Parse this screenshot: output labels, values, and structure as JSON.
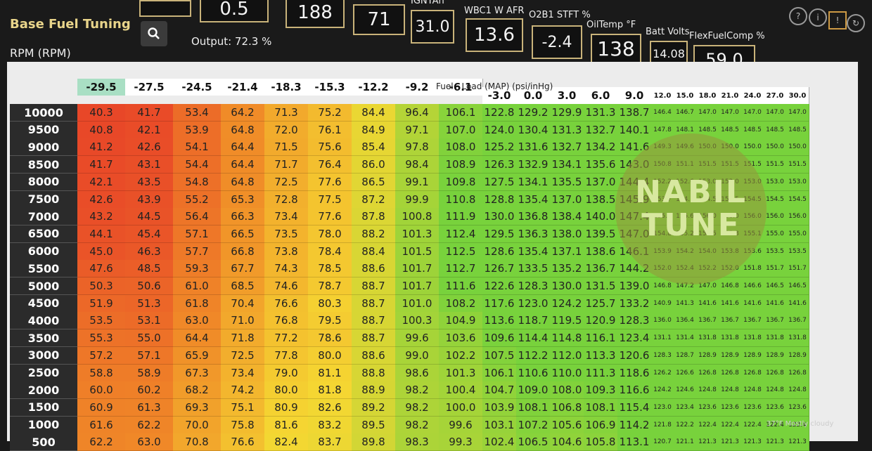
{
  "gauges": [
    {
      "label": "",
      "value": "0.5"
    },
    {
      "label": "",
      "value": "188"
    },
    {
      "label": "",
      "value": "71"
    },
    {
      "label": "IGNTAn °",
      "value": "31.0"
    },
    {
      "label": "WBC1 W AFR",
      "value": "13.6"
    },
    {
      "label": "O2B1 STFT %",
      "value": "-2.4"
    },
    {
      "label": "OilTemp °F",
      "value": "138"
    },
    {
      "label": "Batt Volts",
      "value": "14.08"
    },
    {
      "label": "FlexFuelComp %",
      "value": "59.0"
    }
  ],
  "header": {
    "title": "Base Fuel Tuning",
    "output_label": "Output: 72.3 %",
    "row_axis_label": "RPM (RPM)",
    "col_axis_label": "Fuel - Load (MAP) (psi/inHg)"
  },
  "table": {
    "columns": [
      "-29.5",
      "-27.5",
      "-24.5",
      "-21.4",
      "-18.3",
      "-15.3",
      "-12.2",
      "-9.2",
      "-6.1",
      "-3.0",
      "0.0",
      "3.0",
      "6.0",
      "9.0",
      "12.0",
      "15.0",
      "18.0",
      "21.0",
      "24.0",
      "27.0",
      "30.0"
    ],
    "rows": [
      {
        "rpm": "10000",
        "cells": [
          "40.3",
          "41.7",
          "53.4",
          "64.2",
          "71.3",
          "75.2",
          "84.4",
          "96.4",
          "106.1",
          "122.8",
          "129.2",
          "129.9",
          "131.3",
          "138.7",
          "146.4",
          "146.7",
          "147.0",
          "147.0",
          "147.0",
          "147.0",
          "147.0"
        ]
      },
      {
        "rpm": "9500",
        "cells": [
          "40.8",
          "42.1",
          "53.9",
          "64.8",
          "72.0",
          "76.1",
          "84.9",
          "97.1",
          "107.0",
          "124.0",
          "130.4",
          "131.3",
          "132.7",
          "140.1",
          "147.8",
          "148.1",
          "148.5",
          "148.5",
          "148.5",
          "148.5",
          "148.5"
        ]
      },
      {
        "rpm": "9000",
        "cells": [
          "41.2",
          "42.6",
          "54.1",
          "64.4",
          "71.5",
          "75.6",
          "85.4",
          "97.8",
          "108.0",
          "125.2",
          "131.6",
          "132.7",
          "134.2",
          "141.6",
          "149.3",
          "149.6",
          "150.0",
          "150.0",
          "150.0",
          "150.0",
          "150.0"
        ]
      },
      {
        "rpm": "8500",
        "cells": [
          "41.7",
          "43.1",
          "54.4",
          "64.4",
          "71.7",
          "76.4",
          "86.0",
          "98.4",
          "108.9",
          "126.3",
          "132.9",
          "134.1",
          "135.6",
          "143.0",
          "150.8",
          "151.1",
          "151.5",
          "151.5",
          "151.5",
          "151.5",
          "151.5"
        ]
      },
      {
        "rpm": "8000",
        "cells": [
          "42.1",
          "43.5",
          "54.8",
          "64.8",
          "72.5",
          "77.6",
          "86.5",
          "99.1",
          "109.8",
          "127.5",
          "134.1",
          "135.5",
          "137.0",
          "144.4",
          "152.2",
          "152.6",
          "153.0",
          "153.0",
          "153.0",
          "153.0",
          "153.0"
        ]
      },
      {
        "rpm": "7500",
        "cells": [
          "42.6",
          "43.9",
          "55.2",
          "65.3",
          "72.8",
          "77.5",
          "87.2",
          "99.9",
          "110.8",
          "128.8",
          "135.4",
          "137.0",
          "138.5",
          "145.9",
          "153.7",
          "154.1",
          "154.5",
          "154.5",
          "154.5",
          "154.5",
          "154.5"
        ]
      },
      {
        "rpm": "7000",
        "cells": [
          "43.2",
          "44.5",
          "56.4",
          "66.3",
          "73.4",
          "77.6",
          "87.8",
          "100.8",
          "111.9",
          "130.0",
          "136.8",
          "138.4",
          "140.0",
          "147.4",
          "155.3",
          "155.6",
          "156.0",
          "156.0",
          "156.0",
          "156.0",
          "156.0"
        ]
      },
      {
        "rpm": "6500",
        "cells": [
          "44.1",
          "45.4",
          "57.1",
          "66.5",
          "73.5",
          "78.0",
          "88.2",
          "101.3",
          "112.4",
          "129.5",
          "136.3",
          "138.0",
          "139.5",
          "147.0",
          "154.8",
          "155.2",
          "155.5",
          "155.3",
          "155.1",
          "155.0",
          "155.0"
        ]
      },
      {
        "rpm": "6000",
        "cells": [
          "45.0",
          "46.3",
          "57.7",
          "66.8",
          "73.8",
          "78.4",
          "88.4",
          "101.5",
          "112.5",
          "128.6",
          "135.4",
          "137.1",
          "138.6",
          "146.1",
          "153.9",
          "154.2",
          "154.0",
          "153.8",
          "153.6",
          "153.5",
          "153.5"
        ]
      },
      {
        "rpm": "5500",
        "cells": [
          "47.6",
          "48.5",
          "59.3",
          "67.7",
          "74.3",
          "78.5",
          "88.6",
          "101.7",
          "112.7",
          "126.7",
          "133.5",
          "135.2",
          "136.7",
          "144.2",
          "152.0",
          "152.4",
          "152.2",
          "152.0",
          "151.8",
          "151.7",
          "151.7"
        ]
      },
      {
        "rpm": "5000",
        "cells": [
          "50.3",
          "50.6",
          "61.0",
          "68.5",
          "74.6",
          "78.7",
          "88.7",
          "101.7",
          "111.6",
          "122.6",
          "128.3",
          "130.0",
          "131.5",
          "139.0",
          "146.8",
          "147.2",
          "147.0",
          "146.8",
          "146.6",
          "146.5",
          "146.5"
        ]
      },
      {
        "rpm": "4500",
        "cells": [
          "51.9",
          "51.3",
          "61.8",
          "70.4",
          "76.6",
          "80.3",
          "88.7",
          "101.0",
          "108.2",
          "117.6",
          "123.0",
          "124.2",
          "125.7",
          "133.2",
          "140.9",
          "141.3",
          "141.6",
          "141.6",
          "141.6",
          "141.6",
          "141.6"
        ]
      },
      {
        "rpm": "4000",
        "cells": [
          "53.5",
          "53.1",
          "63.0",
          "71.0",
          "76.8",
          "79.5",
          "88.7",
          "100.3",
          "104.9",
          "113.6",
          "118.7",
          "119.5",
          "120.9",
          "128.3",
          "136.0",
          "136.4",
          "136.7",
          "136.7",
          "136.7",
          "136.7",
          "136.7"
        ]
      },
      {
        "rpm": "3500",
        "cells": [
          "55.3",
          "55.0",
          "64.4",
          "71.8",
          "77.2",
          "78.6",
          "88.7",
          "99.6",
          "103.6",
          "109.6",
          "114.4",
          "114.8",
          "116.1",
          "123.4",
          "131.1",
          "131.4",
          "131.8",
          "131.8",
          "131.8",
          "131.8",
          "131.8"
        ]
      },
      {
        "rpm": "3000",
        "cells": [
          "57.2",
          "57.1",
          "65.9",
          "72.5",
          "77.8",
          "80.0",
          "88.6",
          "99.0",
          "102.2",
          "107.5",
          "112.2",
          "112.0",
          "113.3",
          "120.6",
          "128.3",
          "128.7",
          "128.9",
          "128.9",
          "128.9",
          "128.9",
          "128.9"
        ]
      },
      {
        "rpm": "2500",
        "cells": [
          "58.8",
          "58.9",
          "67.3",
          "73.4",
          "79.0",
          "81.1",
          "88.8",
          "98.6",
          "101.3",
          "106.1",
          "110.6",
          "110.0",
          "111.3",
          "118.6",
          "126.2",
          "126.6",
          "126.8",
          "126.8",
          "126.8",
          "126.8",
          "126.8"
        ]
      },
      {
        "rpm": "2000",
        "cells": [
          "60.0",
          "60.2",
          "68.2",
          "74.2",
          "80.0",
          "81.8",
          "88.9",
          "98.2",
          "100.4",
          "104.7",
          "109.0",
          "108.0",
          "109.3",
          "116.6",
          "124.2",
          "124.6",
          "124.8",
          "124.8",
          "124.8",
          "124.8",
          "124.8"
        ]
      },
      {
        "rpm": "1500",
        "cells": [
          "60.9",
          "61.3",
          "69.3",
          "75.1",
          "80.9",
          "82.6",
          "89.2",
          "98.2",
          "100.0",
          "103.9",
          "108.1",
          "106.8",
          "108.1",
          "115.4",
          "123.0",
          "123.4",
          "123.6",
          "123.6",
          "123.6",
          "123.6",
          "123.6"
        ]
      },
      {
        "rpm": "1000",
        "cells": [
          "61.6",
          "62.2",
          "70.0",
          "75.8",
          "81.6",
          "83.2",
          "89.5",
          "98.2",
          "99.6",
          "103.1",
          "107.2",
          "105.6",
          "106.9",
          "114.2",
          "121.8",
          "122.2",
          "122.4",
          "122.4",
          "122.4",
          "122.4",
          "122.4"
        ]
      },
      {
        "rpm": "500",
        "cells": [
          "62.2",
          "63.0",
          "70.8",
          "76.6",
          "82.4",
          "83.7",
          "89.8",
          "98.3",
          "99.3",
          "102.4",
          "106.5",
          "104.6",
          "105.8",
          "113.1",
          "120.7",
          "121.1",
          "121.3",
          "121.3",
          "121.3",
          "121.3",
          "121.3"
        ]
      }
    ]
  },
  "watermark": {
    "line1": "NABIL",
    "line2": "TUNE"
  },
  "taskbar": {
    "weather": "37°F Mostly cloudy"
  },
  "colors": {
    "low": "#e8452a",
    "mid": "#f2c22e",
    "high": "#7fd43a"
  }
}
